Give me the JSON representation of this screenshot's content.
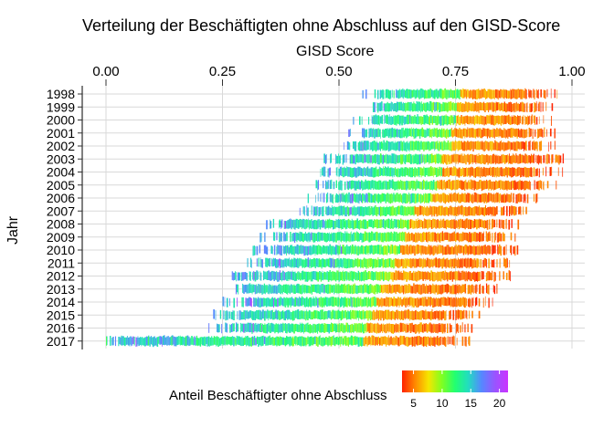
{
  "chart_data": {
    "type": "heatmap",
    "title": "Verteilung der Beschäftigten ohne Abschluss auf den GISD-Score",
    "xlabel": "GISD Score",
    "ylabel": "Jahr",
    "xlim": [
      0,
      1
    ],
    "x_ticks": [
      "0.00",
      "0.25",
      "0.50",
      "0.75",
      "1.00"
    ],
    "x_tick_values": [
      0,
      0.25,
      0.5,
      0.75,
      1.0
    ],
    "x_axis_position": "top",
    "grid": true,
    "years": [
      "1998",
      "1999",
      "2000",
      "2001",
      "2002",
      "2003",
      "2004",
      "2005",
      "2006",
      "2007",
      "2008",
      "2009",
      "2010",
      "2011",
      "2012",
      "2013",
      "2014",
      "2015",
      "2016",
      "2017"
    ],
    "gisd_range_by_year": [
      [
        0.55,
        0.97
      ],
      [
        0.54,
        0.96
      ],
      [
        0.53,
        0.96
      ],
      [
        0.52,
        0.97
      ],
      [
        0.51,
        0.97
      ],
      [
        0.46,
        0.98
      ],
      [
        0.46,
        0.98
      ],
      [
        0.45,
        0.97
      ],
      [
        0.43,
        0.93
      ],
      [
        0.41,
        0.91
      ],
      [
        0.34,
        0.89
      ],
      [
        0.33,
        0.88
      ],
      [
        0.31,
        0.89
      ],
      [
        0.3,
        0.87
      ],
      [
        0.27,
        0.87
      ],
      [
        0.26,
        0.84
      ],
      [
        0.25,
        0.83
      ],
      [
        0.23,
        0.8
      ],
      [
        0.22,
        0.79
      ],
      [
        0.0,
        0.78
      ]
    ],
    "color_transition_gisd_by_year": [
      0.76,
      0.75,
      0.75,
      0.74,
      0.74,
      0.72,
      0.72,
      0.71,
      0.7,
      0.66,
      0.65,
      0.64,
      0.63,
      0.62,
      0.61,
      0.59,
      0.58,
      0.57,
      0.56,
      0.55
    ],
    "legend": {
      "title": "Anteil Beschäftigter ohne Abschluss",
      "placement": "bottom",
      "ticks": [
        "5",
        "10",
        "15",
        "20"
      ],
      "tick_values": [
        5,
        10,
        15,
        20
      ],
      "range": [
        3,
        21.5
      ],
      "colors": [
        "#ff2200",
        "#ff8a00",
        "#f5e600",
        "#80ff20",
        "#22ff70",
        "#22ddc0",
        "#5588ff",
        "#9955ff",
        "#cc33ff"
      ]
    }
  }
}
